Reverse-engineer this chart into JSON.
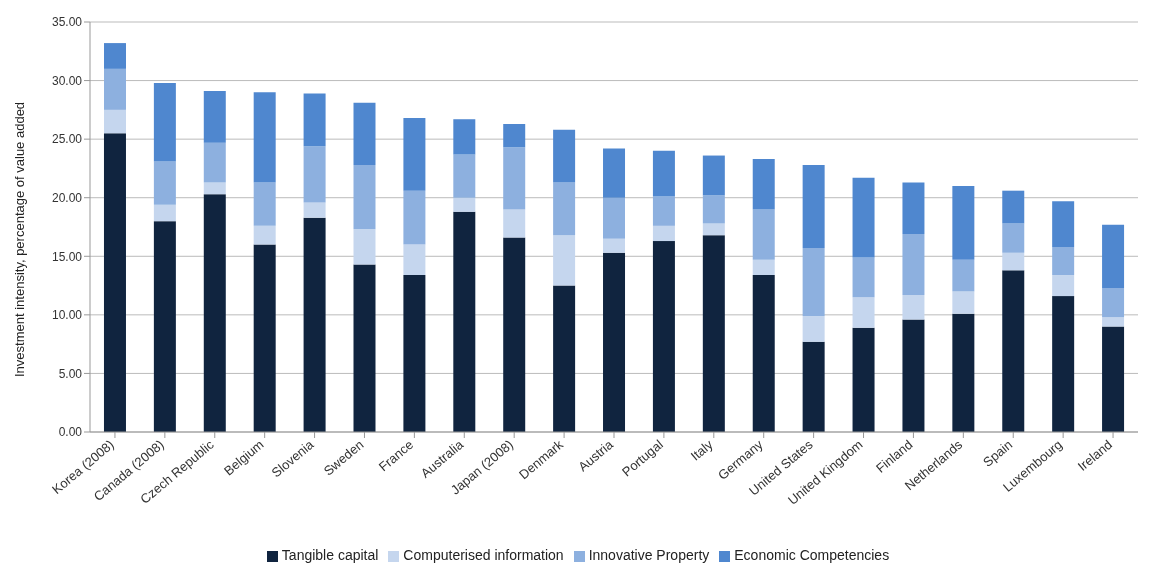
{
  "chart_data": {
    "type": "bar",
    "stacked": true,
    "ylabel": "Investment intensity, percentage of value added",
    "categories": [
      "Korea (2008)",
      "Canada (2008)",
      "Czech Republic",
      "Belgium",
      "Slovenia",
      "Sweden",
      "France",
      "Australia",
      "Japan (2008)",
      "Denmark",
      "Austria",
      "Portugal",
      "Italy",
      "Germany",
      "United States",
      "United Kingdom",
      "Finland",
      "Netherlands",
      "Spain",
      "Luxembourg",
      "Ireland"
    ],
    "series": [
      {
        "name": "Tangible capital",
        "color": "#10243f",
        "values": [
          25.5,
          18.0,
          20.3,
          16.0,
          18.3,
          14.3,
          13.4,
          18.8,
          16.6,
          12.5,
          15.3,
          16.3,
          16.8,
          13.4,
          7.7,
          8.9,
          9.6,
          10.1,
          13.8,
          11.6,
          9.0
        ]
      },
      {
        "name": "Computerised information",
        "color": "#c5d6ee",
        "values": [
          2.0,
          1.4,
          1.0,
          1.6,
          1.3,
          3.0,
          2.6,
          1.2,
          2.4,
          4.3,
          1.2,
          1.3,
          1.0,
          1.3,
          2.2,
          2.6,
          2.1,
          1.9,
          1.5,
          1.8,
          0.8
        ]
      },
      {
        "name": "Innovative Property",
        "color": "#8db0df",
        "values": [
          3.5,
          3.7,
          3.4,
          3.7,
          4.8,
          5.5,
          4.6,
          3.7,
          5.3,
          4.5,
          3.5,
          2.5,
          2.4,
          4.3,
          5.8,
          3.4,
          5.2,
          2.7,
          2.5,
          2.4,
          2.5
        ]
      },
      {
        "name": "Economic Competencies",
        "color": "#4f87cf",
        "values": [
          2.2,
          6.7,
          4.4,
          7.7,
          4.5,
          5.3,
          6.2,
          3.0,
          2.0,
          4.5,
          4.2,
          3.9,
          3.4,
          4.3,
          7.1,
          6.8,
          4.4,
          6.3,
          2.8,
          3.9,
          5.4
        ]
      }
    ],
    "ylim": [
      0,
      35
    ],
    "yticks": [
      {
        "value": 0,
        "label": "0.00"
      },
      {
        "value": 5,
        "label": "5.00"
      },
      {
        "value": 10,
        "label": "10.00"
      },
      {
        "value": 15,
        "label": "15.00"
      },
      {
        "value": 20,
        "label": "20.00"
      },
      {
        "value": 25,
        "label": "25.00"
      },
      {
        "value": 30,
        "label": "30.00"
      },
      {
        "value": 35,
        "label": "35.00"
      }
    ],
    "grid": "y",
    "legend": "bottom"
  }
}
